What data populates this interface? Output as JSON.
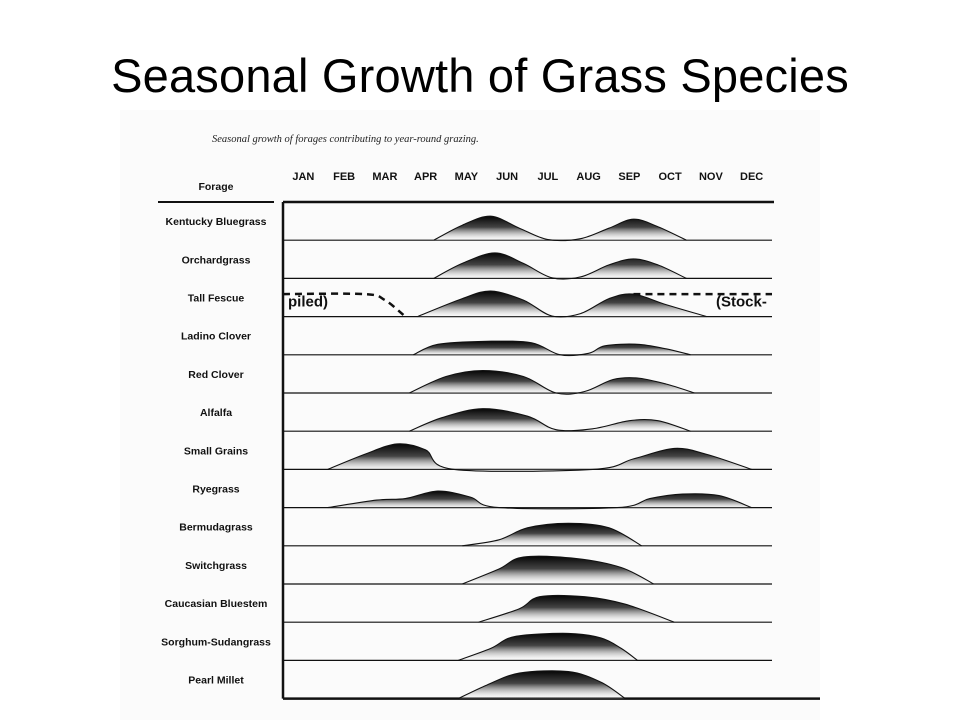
{
  "slide": {
    "title": "Seasonal Growth of Grass Species"
  },
  "chart_data": {
    "type": "area",
    "caption": "Seasonal growth of forages contributing to year-round grazing.",
    "row_header": "Forage",
    "months": [
      "JAN",
      "FEB",
      "MAR",
      "APR",
      "MAY",
      "JUN",
      "JUL",
      "AUG",
      "SEP",
      "OCT",
      "NOV",
      "DEC"
    ],
    "value_scale": "relative growth, 0 = none, 1 = peak",
    "grid": false,
    "rows": [
      {
        "name": "Kentucky Bluegrass",
        "points": [
          [
            3.7,
            0
          ],
          [
            4.4,
            0.5
          ],
          [
            5.1,
            0.8
          ],
          [
            5.8,
            0.4
          ],
          [
            6.5,
            0.02
          ],
          [
            7.3,
            0.05
          ],
          [
            8.0,
            0.4
          ],
          [
            8.6,
            0.7
          ],
          [
            9.2,
            0.45
          ],
          [
            9.9,
            0
          ]
        ]
      },
      {
        "name": "Orchardgrass",
        "points": [
          [
            3.7,
            0
          ],
          [
            4.4,
            0.5
          ],
          [
            5.2,
            0.85
          ],
          [
            5.9,
            0.5
          ],
          [
            6.6,
            0.02
          ],
          [
            7.3,
            0.05
          ],
          [
            8.0,
            0.45
          ],
          [
            8.6,
            0.65
          ],
          [
            9.2,
            0.45
          ],
          [
            9.9,
            0
          ]
        ]
      },
      {
        "name": "Tall Fescue",
        "points": [
          [
            3.3,
            0
          ],
          [
            4.4,
            0.6
          ],
          [
            5.1,
            0.85
          ],
          [
            5.9,
            0.55
          ],
          [
            6.6,
            0.02
          ],
          [
            7.3,
            0.1
          ],
          [
            8.0,
            0.6
          ],
          [
            8.6,
            0.75
          ],
          [
            9.4,
            0.4
          ],
          [
            10.4,
            0
          ]
        ],
        "dashed_before": [
          [
            0.0,
            0.75
          ],
          [
            2.0,
            0.75
          ],
          [
            2.5,
            0.55
          ],
          [
            3.0,
            0.0
          ]
        ],
        "dashed_after": [
          [
            8.6,
            0.75
          ],
          [
            12.0,
            0.75
          ]
        ],
        "annotations": [
          "piled)",
          "(Stock-"
        ]
      },
      {
        "name": "Ladino Clover",
        "points": [
          [
            3.2,
            0
          ],
          [
            3.8,
            0.35
          ],
          [
            5.0,
            0.45
          ],
          [
            6.1,
            0.4
          ],
          [
            6.8,
            0.0
          ],
          [
            7.5,
            0.05
          ],
          [
            7.9,
            0.3
          ],
          [
            8.7,
            0.35
          ],
          [
            9.4,
            0.2
          ],
          [
            10.0,
            0
          ]
        ]
      },
      {
        "name": "Red Clover",
        "points": [
          [
            3.1,
            0
          ],
          [
            4.0,
            0.55
          ],
          [
            4.9,
            0.75
          ],
          [
            5.9,
            0.55
          ],
          [
            6.7,
            0.0
          ],
          [
            7.4,
            0.05
          ],
          [
            8.1,
            0.45
          ],
          [
            8.7,
            0.5
          ],
          [
            9.4,
            0.3
          ],
          [
            10.1,
            0
          ]
        ]
      },
      {
        "name": "Alfalfa",
        "points": [
          [
            3.1,
            0
          ],
          [
            3.9,
            0.45
          ],
          [
            4.9,
            0.75
          ],
          [
            6.0,
            0.5
          ],
          [
            6.7,
            0.05
          ],
          [
            7.6,
            0.08
          ],
          [
            8.5,
            0.35
          ],
          [
            9.2,
            0.35
          ],
          [
            10.0,
            0
          ]
        ]
      },
      {
        "name": "Small Grains",
        "points": [
          [
            1.1,
            0
          ],
          [
            2.0,
            0.5
          ],
          [
            2.8,
            0.85
          ],
          [
            3.5,
            0.65
          ],
          [
            4.2,
            0.0
          ],
          [
            7.6,
            0
          ],
          [
            8.6,
            0.35
          ],
          [
            9.6,
            0.7
          ],
          [
            10.4,
            0.5
          ],
          [
            11.5,
            0
          ]
        ]
      },
      {
        "name": "Ryegrass",
        "points": [
          [
            1.1,
            0
          ],
          [
            2.3,
            0.25
          ],
          [
            3.0,
            0.3
          ],
          [
            3.8,
            0.55
          ],
          [
            4.6,
            0.35
          ],
          [
            5.3,
            0.0
          ],
          [
            8.2,
            0
          ],
          [
            9.0,
            0.3
          ],
          [
            9.8,
            0.45
          ],
          [
            10.7,
            0.4
          ],
          [
            11.5,
            0
          ]
        ]
      },
      {
        "name": "Bermudagrass",
        "points": [
          [
            4.4,
            0
          ],
          [
            5.3,
            0.2
          ],
          [
            6.0,
            0.6
          ],
          [
            7.0,
            0.75
          ],
          [
            8.0,
            0.6
          ],
          [
            8.8,
            0.0
          ]
        ]
      },
      {
        "name": "Switchgrass",
        "points": [
          [
            4.4,
            0
          ],
          [
            5.3,
            0.5
          ],
          [
            5.9,
            0.9
          ],
          [
            7.2,
            0.85
          ],
          [
            8.3,
            0.55
          ],
          [
            9.1,
            0.0
          ]
        ]
      },
      {
        "name": "Caucasian Bluestem",
        "points": [
          [
            4.8,
            0
          ],
          [
            5.8,
            0.45
          ],
          [
            6.3,
            0.85
          ],
          [
            7.4,
            0.85
          ],
          [
            8.4,
            0.6
          ],
          [
            9.6,
            0.0
          ]
        ]
      },
      {
        "name": "Sorghum-Sudangrass",
        "points": [
          [
            4.3,
            0
          ],
          [
            5.1,
            0.4
          ],
          [
            5.7,
            0.8
          ],
          [
            7.0,
            0.9
          ],
          [
            7.8,
            0.75
          ],
          [
            8.3,
            0.4
          ],
          [
            8.7,
            0.0
          ]
        ]
      },
      {
        "name": "Pearl Millet",
        "points": [
          [
            4.3,
            0
          ],
          [
            5.0,
            0.45
          ],
          [
            5.8,
            0.85
          ],
          [
            7.0,
            0.9
          ],
          [
            7.8,
            0.55
          ],
          [
            8.4,
            0.0
          ]
        ]
      }
    ]
  }
}
